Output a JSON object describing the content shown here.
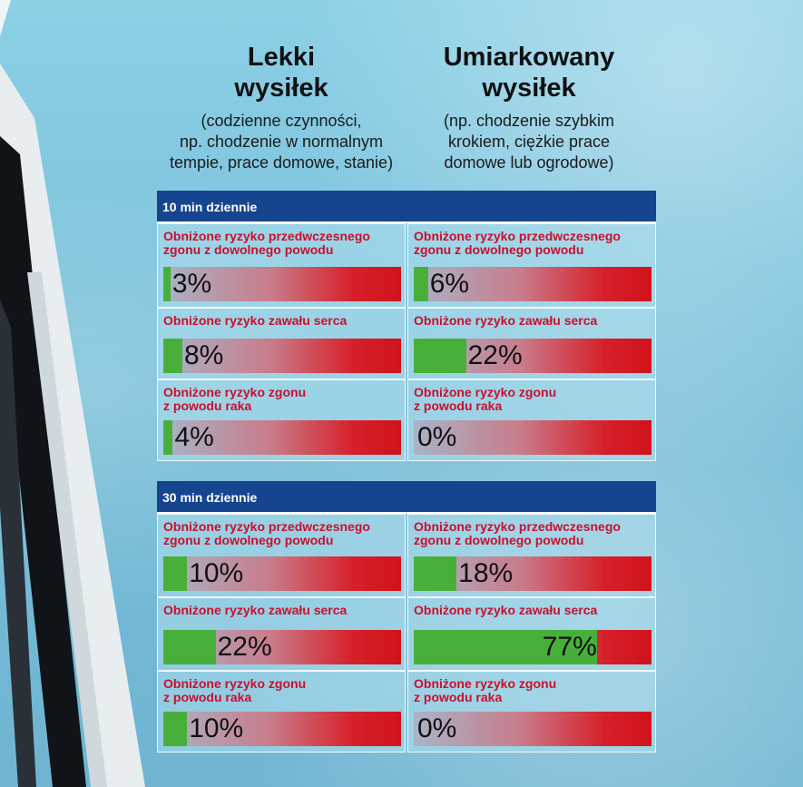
{
  "headings": {
    "light": {
      "title": "Lekki\nwysiłek",
      "subtitle": "(codzienne czynności,\nnp. chodzenie w normalnym\ntempie, prace domowe, stanie)"
    },
    "moderate": {
      "title": "Umiarkowany\nwysiłek",
      "subtitle": "(np. chodzenie szybkim\nkrokiem, ciężkie prace\ndomowe lub ogrodowe)"
    }
  },
  "colors": {
    "band": "#17448e",
    "label": "#c8102e",
    "fill": "#48b03a",
    "bar_end": "#d0121b"
  },
  "chart_data": {
    "type": "bar",
    "groups": [
      {
        "label": "10 min dziennie",
        "rows": [
          {
            "label": "Obniżone ryzyko przedwczesnego\nzgonu z dowolnego powodu",
            "light": {
              "value": 3,
              "text": "3%"
            },
            "moderate": {
              "value": 6,
              "text": "6%"
            }
          },
          {
            "label": "Obniżone ryzyko zawału serca",
            "light": {
              "value": 8,
              "text": "8%"
            },
            "moderate": {
              "value": 22,
              "text": "22%"
            }
          },
          {
            "label": "Obniżone ryzyko zgonu\nz powodu raka",
            "light": {
              "value": 4,
              "text": "4%"
            },
            "moderate": {
              "value": 0,
              "text": "0%"
            }
          }
        ]
      },
      {
        "label": "30 min dziennie",
        "rows": [
          {
            "label": "Obniżone ryzyko przedwczesnego\nzgonu z dowolnego powodu",
            "light": {
              "value": 10,
              "text": "10%"
            },
            "moderate": {
              "value": 18,
              "text": "18%"
            }
          },
          {
            "label": "Obniżone ryzyko zawału serca",
            "light": {
              "value": 22,
              "text": "22%"
            },
            "moderate": {
              "value": 77,
              "text": "77%"
            }
          },
          {
            "label": "Obniżone ryzyko zgonu\nz powodu raka",
            "light": {
              "value": 10,
              "text": "10%"
            },
            "moderate": {
              "value": 0,
              "text": "0%"
            }
          }
        ]
      }
    ],
    "ylim": [
      0,
      100
    ]
  }
}
